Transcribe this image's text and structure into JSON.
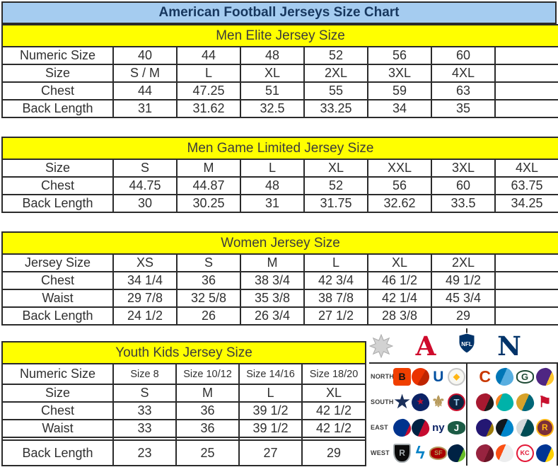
{
  "title": "American Football Jerseys Size Chart",
  "colors": {
    "title_bg": "#A5CCF0",
    "title_text": "#17375E",
    "section_header_bg": "#FFFF00",
    "section_header_text": "#3C3C3C",
    "table_border": "#2b2b2b",
    "cell_text": "#303030",
    "afc_red": "#CF0A2C",
    "nfc_blue": "#013369"
  },
  "tables": {
    "men_elite": {
      "header": "Men Elite Jersey Size",
      "rows": [
        {
          "label": "Numeric Size",
          "cells": [
            "40",
            "44",
            "48",
            "52",
            "56",
            "60",
            ""
          ]
        },
        {
          "label": "Size",
          "cells": [
            "S / M",
            "L",
            "XL",
            "2XL",
            "3XL",
            "4XL",
            ""
          ]
        },
        {
          "label": "Chest",
          "cells": [
            "44",
            "47.25",
            "51",
            "55",
            "59",
            "63",
            ""
          ]
        },
        {
          "label": "Back Length",
          "cells": [
            "31",
            "31.62",
            "32.5",
            "33.25",
            "34",
            "35",
            ""
          ]
        }
      ]
    },
    "men_game_limited": {
      "header": "Men Game Limited Jersey Size",
      "rows": [
        {
          "label": "Size",
          "cells": [
            "S",
            "M",
            "L",
            "XL",
            "XXL",
            "3XL",
            "4XL"
          ]
        },
        {
          "label": "Chest",
          "cells": [
            "44.75",
            "44.87",
            "48",
            "52",
            "56",
            "60",
            "63.75"
          ]
        },
        {
          "label": "Back Length",
          "cells": [
            "30",
            "30.25",
            "31",
            "31.75",
            "32.62",
            "33.5",
            "34.25"
          ]
        }
      ]
    },
    "women": {
      "header": "Women Jersey Size",
      "rows": [
        {
          "label": "Jersey Size",
          "cells": [
            "XS",
            "S",
            "M",
            "L",
            "XL",
            "2XL",
            ""
          ]
        },
        {
          "label": "Chest",
          "cells": [
            "34 1/4",
            "36",
            "38 3/4",
            "42 3/4",
            "46 1/2",
            "49 1/2",
            ""
          ]
        },
        {
          "label": "Waist",
          "cells": [
            "29 7/8",
            "32 5/8",
            "35 3/8",
            "38 7/8",
            "42 1/4",
            "45 3/4",
            ""
          ]
        },
        {
          "label": "Back Length",
          "cells": [
            "24 1/2",
            "26",
            "26 3/4",
            "27 1/2",
            "28 3/8",
            "29",
            ""
          ]
        }
      ]
    },
    "youth": {
      "header": "Youth Kids Jersey Size",
      "rows": [
        {
          "label": "Numeric Size",
          "cells": [
            "Size 8",
            "Size 10/12",
            "Size 14/16",
            "Size 18/20"
          ],
          "small": true,
          "numeric": true
        },
        {
          "label": "Size",
          "cells": [
            "S",
            "M",
            "L",
            "XL"
          ]
        },
        {
          "label": "Chest",
          "cells": [
            "33",
            "36",
            "39 1/2",
            "42 1/2"
          ]
        },
        {
          "label": "Waist",
          "cells": [
            "33",
            "36",
            "39 1/2",
            "42 1/2"
          ]
        },
        {
          "label": "Back Length",
          "cells": [
            "23",
            "25",
            "27",
            "29"
          ],
          "tall": true,
          "spacer_before": true
        }
      ]
    }
  },
  "nfl": {
    "afc_letter": "A",
    "nfc_letter": "N",
    "shield_label": "NFL",
    "divisions": [
      {
        "label": "NORTH",
        "afc": [
          {
            "name": "bengals",
            "shape": "square",
            "glyph": "B",
            "bg": "#F03F00",
            "fg": "#111111"
          },
          {
            "name": "browns",
            "shape": "circle",
            "glyph": "",
            "bg": "#EB3300",
            "bg2": "#BF2400",
            "split": 55,
            "fg": "#ffffff"
          },
          {
            "name": "colts",
            "shape": "glyph",
            "glyph": "U",
            "fg": "#0050A0",
            "fs": 21
          },
          {
            "name": "steelers",
            "shape": "circle",
            "glyph": "◆",
            "bg": "#f7f7f2",
            "fg": "#FFB612",
            "border": "#c8c8c8",
            "fs": 12
          }
        ],
        "nfc": [
          {
            "name": "bears",
            "shape": "glyph",
            "glyph": "C",
            "fg": "#C83803",
            "fs": 23
          },
          {
            "name": "lions",
            "shape": "blob",
            "glyph": "",
            "bg": "#0076B6",
            "bg2": "#58AEE0",
            "split": 45,
            "fg": "#ffffff"
          },
          {
            "name": "packers",
            "shape": "oval",
            "glyph": "G",
            "bg": "#ffffff",
            "fg": "#1E4A35",
            "border": "#1E4A35",
            "fs": 13
          },
          {
            "name": "vikings",
            "shape": "blob",
            "glyph": "",
            "bg": "#4F2683",
            "bg2": "#FFC62F",
            "split": 68,
            "fg": "#ffffff"
          }
        ]
      },
      {
        "label": "SOUTH",
        "afc": [
          {
            "name": "cowboys",
            "shape": "glyph",
            "glyph": "★",
            "fg": "#1A2F5A",
            "fs": 25
          },
          {
            "name": "texans",
            "shape": "blob",
            "glyph": "★",
            "bg": "#0B2265",
            "fg": "#C41230",
            "fs": 11
          },
          {
            "name": "saints",
            "shape": "glyph",
            "glyph": "⚜",
            "fg": "#B79A5B",
            "fs": 22
          },
          {
            "name": "titans",
            "shape": "circle",
            "glyph": "T",
            "bg": "#0C2340",
            "fg": "#9BCBEB",
            "border": "#C8102E",
            "fs": 13
          }
        ],
        "nfc": [
          {
            "name": "falcons",
            "shape": "blob",
            "glyph": "",
            "bg": "#A71930",
            "bg2": "#1c1c1c",
            "split": 62,
            "fg": "#ffffff"
          },
          {
            "name": "dolphins",
            "shape": "blob",
            "glyph": "",
            "bg": "#F58220",
            "bg2": "#00B2A9",
            "split": 28,
            "fg": "#ffffff"
          },
          {
            "name": "jaguars",
            "shape": "blob",
            "glyph": "",
            "bg": "#D7A22A",
            "bg2": "#006778",
            "split": 52,
            "fg": "#ffffff"
          },
          {
            "name": "buccaneers",
            "shape": "glyph",
            "glyph": "⚑",
            "fg": "#C8102E",
            "fs": 21
          }
        ]
      },
      {
        "label": "EAST",
        "afc": [
          {
            "name": "bills",
            "shape": "blob",
            "glyph": "",
            "bg": "#00338D",
            "bg2": "#C60C30",
            "split": 74,
            "fg": "#ffffff"
          },
          {
            "name": "patriots",
            "shape": "blob",
            "glyph": "",
            "bg": "#002244",
            "bg2": "#C60C30",
            "split": 55,
            "fg": "#ffffff"
          },
          {
            "name": "giants",
            "shape": "glyph",
            "glyph": "ny",
            "fg": "#0B2265",
            "fs": 15
          },
          {
            "name": "jets",
            "shape": "oval",
            "glyph": "J",
            "bg": "#1C5B45",
            "fg": "#ffffff",
            "fs": 13
          }
        ],
        "nfc": [
          {
            "name": "ravens",
            "shape": "blob",
            "glyph": "",
            "bg": "#241773",
            "bg2": "#9E7C0C",
            "split": 70,
            "fg": "#ffffff"
          },
          {
            "name": "panthers",
            "shape": "blob",
            "glyph": "",
            "bg": "#101820",
            "bg2": "#0085CA",
            "split": 48,
            "fg": "#ffffff"
          },
          {
            "name": "eagles",
            "shape": "blob",
            "glyph": "",
            "bg": "#D5DADB",
            "bg2": "#004C54",
            "split": 45,
            "fg": "#ffffff"
          },
          {
            "name": "redskins",
            "shape": "circle",
            "glyph": "R",
            "bg": "#7A2E39",
            "fg": "#FFB612",
            "border": "#FFB612",
            "fs": 12
          }
        ]
      },
      {
        "label": "WEST",
        "afc": [
          {
            "name": "raiders",
            "shape": "shield",
            "glyph": "R",
            "bg": "#0b0b0b",
            "fg": "#A5ACAF",
            "border": "#A5ACAF",
            "fs": 12
          },
          {
            "name": "chargers",
            "shape": "glyph",
            "glyph": "ϟ",
            "fg": "#0080C6",
            "fs": 25
          },
          {
            "name": "fortyniners",
            "shape": "oval",
            "glyph": "SF",
            "bg": "#AA0000",
            "fg": "#B3995D",
            "border": "#B3995D",
            "fs": 9
          },
          {
            "name": "seahawks",
            "shape": "blob",
            "glyph": "",
            "bg": "#002244",
            "bg2": "#69BE28",
            "split": 70,
            "fg": "#ffffff"
          }
        ],
        "nfc": [
          {
            "name": "cardinals",
            "shape": "blob",
            "glyph": "",
            "bg": "#97233F",
            "bg2": "#6B1426",
            "split": 60,
            "fg": "#ffffff"
          },
          {
            "name": "broncos",
            "shape": "blob",
            "glyph": "",
            "bg": "#FB4F14",
            "bg2": "#ECEDEE",
            "split": 40,
            "fg": "#002244"
          },
          {
            "name": "chiefs",
            "shape": "circle",
            "glyph": "KC",
            "bg": "#fdfdfd",
            "fg": "#E31837",
            "border": "#E31837",
            "fs": 9
          },
          {
            "name": "rams",
            "shape": "blob",
            "glyph": "",
            "bg": "#003594",
            "bg2": "#FFD100",
            "split": 66,
            "fg": "#ffffff"
          }
        ]
      }
    ]
  }
}
